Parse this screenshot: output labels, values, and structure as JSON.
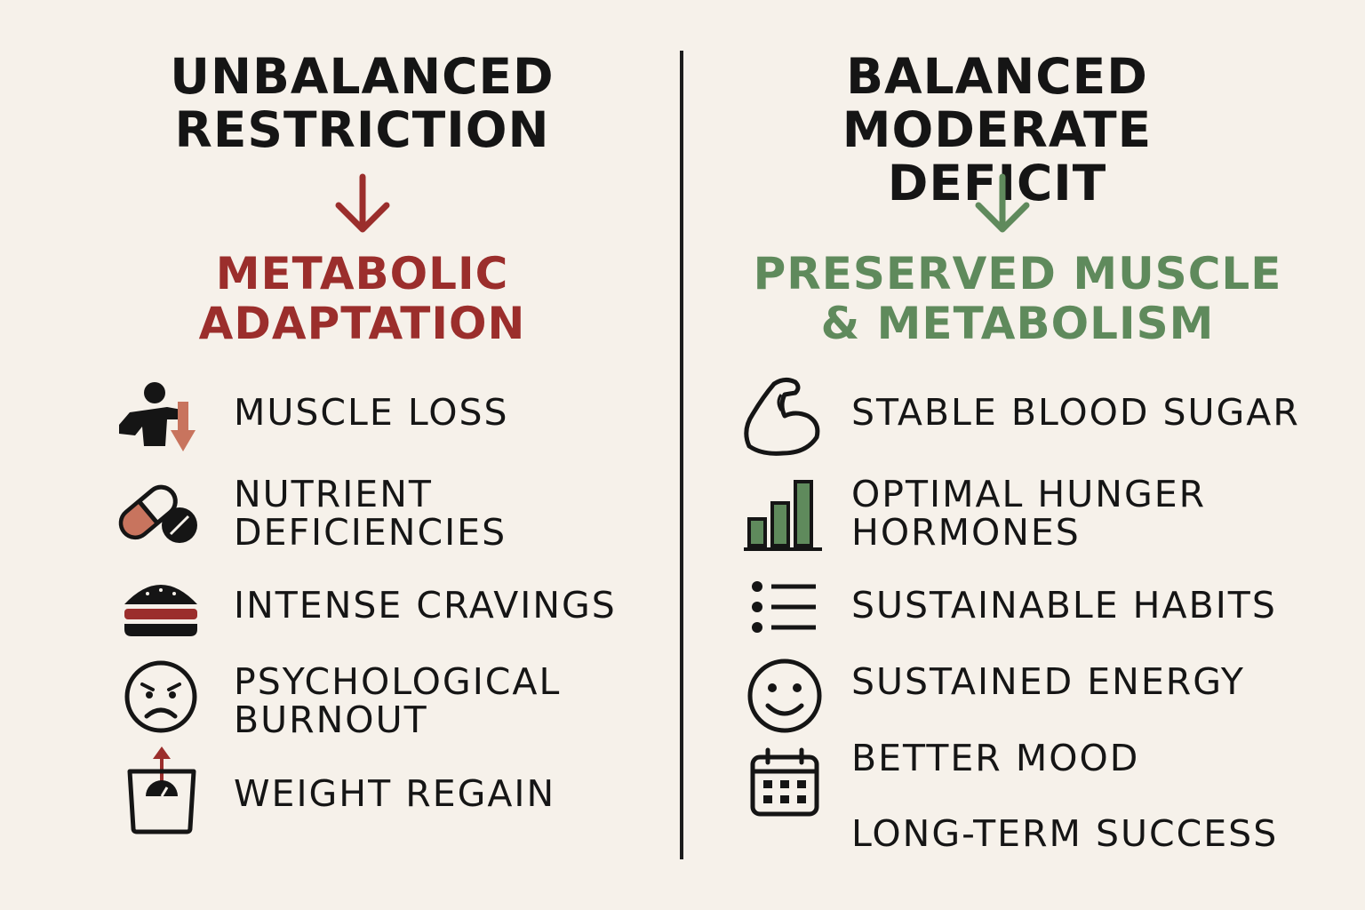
{
  "colors": {
    "background": "#f6f1ea",
    "ink": "#151515",
    "negative_accent": "#9b2e2c",
    "positive_accent": "#5f8a5c"
  },
  "left": {
    "title_line1": "UNBALANCED",
    "title_line2": "RESTRICTION",
    "outcome_line1": "METABOLIC",
    "outcome_line2": "ADAPTATION",
    "items": [
      {
        "icon": "person-muscle-loss-icon",
        "line1": "MUSCLE LOSS",
        "line2": ""
      },
      {
        "icon": "pill-capsule-icon",
        "line1": "NUTRIENT",
        "line2": "DEFICIENCIES"
      },
      {
        "icon": "burger-icon",
        "line1": "INTENSE CRAVINGS",
        "line2": ""
      },
      {
        "icon": "frown-face-icon",
        "line1": "PSYCHOLOGICAL",
        "line2": "BURNOUT"
      },
      {
        "icon": "scale-up-arrow-icon",
        "line1": "WEIGHT REGAIN",
        "line2": ""
      }
    ]
  },
  "right": {
    "title_line1": "BALANCED",
    "title_line2": "MODERATE DEFICIT",
    "outcome_line1": "PRESERVED MUSCLE",
    "outcome_line2": "& METABOLISM",
    "items": [
      {
        "icon": "flexed-arm-icon",
        "line1": "STABLE BLOOD SUGAR",
        "line2": ""
      },
      {
        "icon": "bar-chart-icon",
        "line1": "OPTIMAL HUNGER",
        "line2": "HORMONES"
      },
      {
        "icon": "checklist-icon",
        "line1": "SUSTAINABLE HABITS",
        "line2": ""
      },
      {
        "icon": "smile-face-icon",
        "line1": "SUSTAINED ENERGY",
        "line2": ""
      },
      {
        "icon": "calendar-icon",
        "line1": "BETTER MOOD",
        "line2": ""
      },
      {
        "icon": "",
        "line1": "LONG-TERM SUCCESS",
        "line2": ""
      }
    ]
  }
}
